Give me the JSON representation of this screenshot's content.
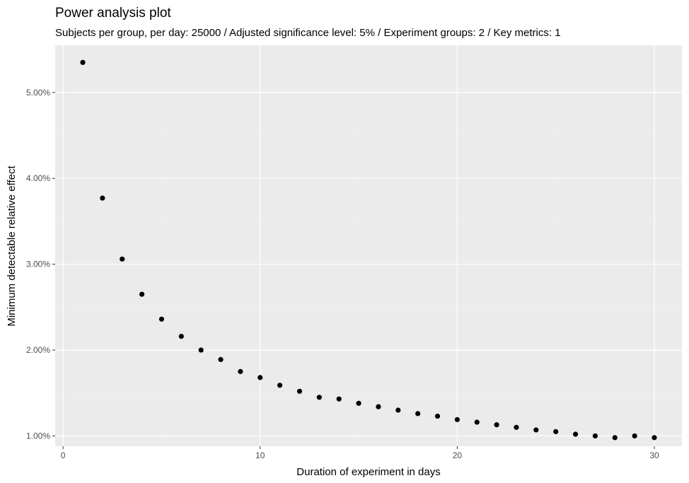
{
  "chart_data": {
    "type": "scatter",
    "title": "Power analysis plot",
    "subtitle": "Subjects per group, per day: 25000 / Adjusted significance level: 5% / Experiment groups: 2 / Key metrics: 1",
    "xlabel": "Duration of experiment in days",
    "ylabel": "Minimum detectable relative effect",
    "xlim": [
      -0.4,
      31.4
    ],
    "ylim": [
      0.0088,
      0.0555
    ],
    "x_ticks": [
      0,
      10,
      20,
      30
    ],
    "x_tick_labels": [
      "0",
      "10",
      "20",
      "30"
    ],
    "x_minor_ticks": [
      5,
      15,
      25
    ],
    "y_ticks": [
      0.01,
      0.02,
      0.03,
      0.04,
      0.05
    ],
    "y_tick_labels": [
      "1.00%",
      "2.00%",
      "3.00%",
      "4.00%",
      "5.00%"
    ],
    "y_minor_ticks": [
      0.015,
      0.025,
      0.035,
      0.045
    ],
    "grid": true,
    "legend": "none",
    "series": [
      {
        "x": [
          1,
          2,
          3,
          4,
          5,
          6,
          7,
          8,
          9,
          10,
          11,
          12,
          13,
          14,
          15,
          16,
          17,
          18,
          19,
          20,
          21,
          22,
          23,
          24,
          25,
          26,
          27,
          28,
          29,
          30
        ],
        "y": [
          0.0535,
          0.0377,
          0.0306,
          0.0265,
          0.0236,
          0.0216,
          0.02,
          0.0189,
          0.0175,
          0.0168,
          0.0159,
          0.0152,
          0.0145,
          0.0143,
          0.0138,
          0.0134,
          0.013,
          0.0126,
          0.0123,
          0.0119,
          0.0116,
          0.0113,
          0.011,
          0.0107,
          0.0105,
          0.0102,
          0.01,
          0.0098,
          0.01,
          0.0098
        ]
      }
    ],
    "colors": {
      "panel_background": "#EBEBEB",
      "grid_major": "#FFFFFF",
      "grid_minor": "#F4F4F4",
      "point": "#000000",
      "tick_label": "#4D4D4D",
      "axis_tick": "#333333"
    }
  }
}
